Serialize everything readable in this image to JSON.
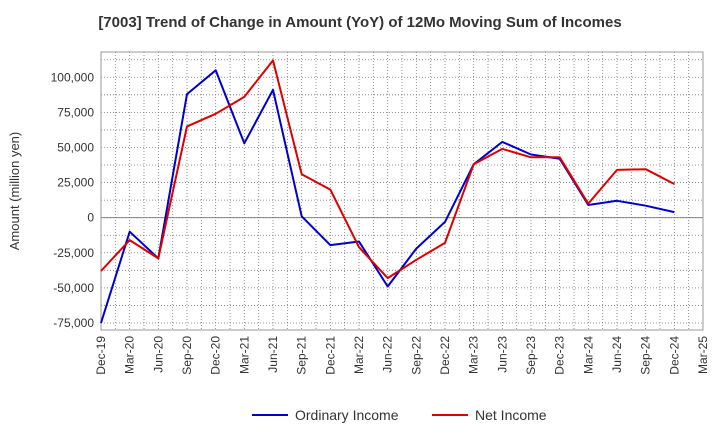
{
  "chart_data": {
    "type": "line",
    "title": "[7003]  Trend of Change in Amount (YoY) of 12Mo Moving Sum of Incomes",
    "xlabel": "",
    "ylabel": "Amount (million yen)",
    "ylim": [
      -80000,
      118000
    ],
    "yticks": [
      -75000,
      -50000,
      -25000,
      0,
      25000,
      50000,
      75000,
      100000
    ],
    "ytick_labels": [
      "-75,000",
      "-50,000",
      "-25,000",
      "0",
      "25,000",
      "50,000",
      "75,000",
      "100,000"
    ],
    "categories": [
      "Dec-19",
      "Mar-20",
      "Jun-20",
      "Sep-20",
      "Dec-20",
      "Mar-21",
      "Jun-21",
      "Sep-21",
      "Dec-21",
      "Mar-22",
      "Jun-22",
      "Sep-22",
      "Dec-22",
      "Mar-23",
      "Jun-23",
      "Sep-23",
      "Dec-23",
      "Mar-24",
      "Jun-24",
      "Sep-24",
      "Dec-24",
      "Mar-25"
    ],
    "grid": true,
    "legend_position": "bottom",
    "series": [
      {
        "name": "Ordinary Income",
        "color": "#0000cc",
        "values": [
          -75000,
          -10000,
          -29000,
          88000,
          105000,
          53000,
          91000,
          1000,
          -19500,
          -17000,
          -49000,
          -22000,
          -3000,
          38000,
          54000,
          45000,
          42000,
          9000,
          12000,
          8500,
          4000,
          null
        ]
      },
      {
        "name": "Net Income",
        "color": "#dd0000",
        "values": [
          -38000,
          -16000,
          -29000,
          65000,
          74000,
          86000,
          112000,
          31000,
          20000,
          -21000,
          -43000,
          -30000,
          -18000,
          38000,
          49000,
          43000,
          43000,
          10000,
          34000,
          34500,
          24000,
          null
        ]
      }
    ]
  }
}
